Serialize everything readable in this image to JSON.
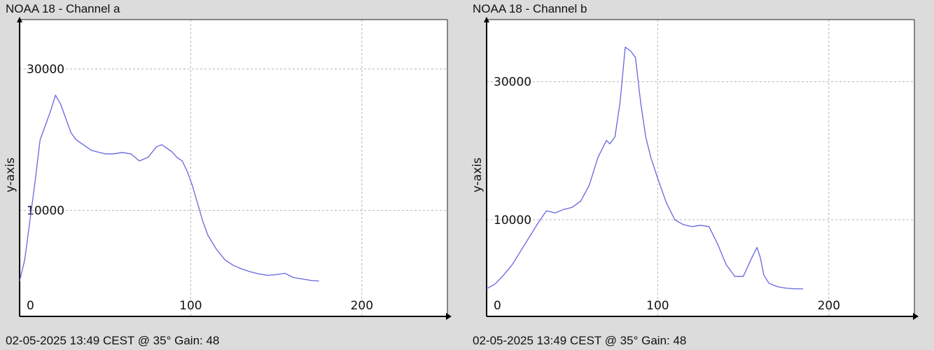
{
  "chart_data": [
    {
      "type": "line",
      "title": "NOAA 18 - Channel a",
      "ylabel": "y-axis",
      "xlabel": "",
      "footer": "02-05-2025 13:49 CEST @ 35° Gain: 48",
      "xlim": [
        0,
        250
      ],
      "ylim": [
        -5000,
        37000
      ],
      "xticks": [
        0,
        100,
        200
      ],
      "yticks": [
        10000,
        30000
      ],
      "grid": true,
      "series": [
        {
          "color": "#6666dd",
          "x": [
            0,
            3,
            6,
            9,
            12,
            15,
            18,
            21,
            24,
            27,
            30,
            33,
            36,
            39,
            42,
            45,
            50,
            55,
            60,
            65,
            70,
            75,
            80,
            83,
            86,
            89,
            92,
            95,
            98,
            101,
            104,
            107,
            110,
            115,
            120,
            125,
            130,
            135,
            140,
            145,
            150,
            155,
            160,
            165,
            170,
            175
          ],
          "y": [
            0,
            3000,
            8500,
            14000,
            20000,
            22000,
            24000,
            26300,
            25000,
            23000,
            21000,
            20000,
            19500,
            19000,
            18500,
            18300,
            18000,
            18000,
            18200,
            18000,
            17000,
            17500,
            19000,
            19300,
            18800,
            18300,
            17500,
            17000,
            15500,
            13500,
            11000,
            8500,
            6500,
            4500,
            3000,
            2200,
            1700,
            1300,
            1000,
            800,
            900,
            1100,
            500,
            300,
            100,
            0
          ]
        }
      ]
    },
    {
      "type": "line",
      "title": "NOAA 18 - Channel b",
      "ylabel": "y-axis",
      "xlabel": "",
      "footer": "02-05-2025 13:49 CEST @ 35° Gain: 48",
      "xlim": [
        0,
        250
      ],
      "ylim": [
        -4000,
        39000
      ],
      "xticks": [
        0,
        100,
        200
      ],
      "yticks": [
        10000,
        30000
      ],
      "grid": true,
      "series": [
        {
          "color": "#6666dd",
          "x": [
            0,
            5,
            10,
            15,
            20,
            25,
            30,
            35,
            40,
            45,
            50,
            55,
            60,
            65,
            70,
            72,
            75,
            78,
            81,
            84,
            87,
            90,
            93,
            96,
            100,
            105,
            110,
            115,
            120,
            125,
            130,
            135,
            140,
            145,
            150,
            155,
            158,
            160,
            162,
            165,
            170,
            175,
            180,
            185
          ],
          "y": [
            0,
            700,
            2000,
            3500,
            5500,
            7500,
            9500,
            11300,
            11000,
            11500,
            11800,
            12700,
            15000,
            19000,
            21500,
            21000,
            22000,
            27000,
            35000,
            34500,
            33500,
            27000,
            22000,
            19000,
            16000,
            12500,
            10000,
            9300,
            9000,
            9200,
            9000,
            6500,
            3500,
            1800,
            1800,
            4500,
            6000,
            4500,
            2000,
            800,
            300,
            100,
            0,
            0
          ]
        }
      ]
    }
  ]
}
